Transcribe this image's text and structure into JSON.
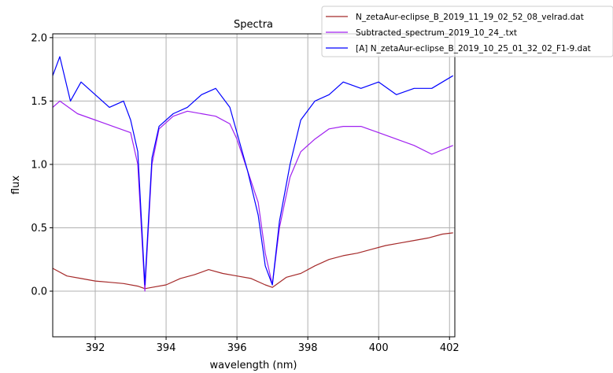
{
  "chart_data": {
    "type": "line",
    "title": "Spectra",
    "xlabel": "wavelength (nm)",
    "ylabel": "flux",
    "xlim": [
      390.8,
      402.15
    ],
    "ylim": [
      -0.36,
      2.03
    ],
    "xticks": [
      392,
      394,
      396,
      398,
      400,
      402
    ],
    "yticks": [
      0.0,
      0.5,
      1.0,
      1.5,
      2.0
    ],
    "xtick_labels": [
      "392",
      "394",
      "396",
      "398",
      "400",
      "402"
    ],
    "ytick_labels": [
      "0.0",
      "0.5",
      "1.0",
      "1.5",
      "2.0"
    ],
    "grid": true,
    "legend_position": "upper-right (outside axes)",
    "series": [
      {
        "name": "N_zetaAur-eclipse_B_2019_11_19_02_52_08_velrad.dat",
        "color": "#a52a2a",
        "x": [
          390.8,
          391.2,
          391.6,
          392.0,
          392.4,
          392.8,
          393.2,
          393.4,
          393.6,
          394.0,
          394.4,
          394.8,
          395.2,
          395.6,
          396.0,
          396.4,
          396.8,
          397.0,
          397.4,
          397.8,
          398.2,
          398.6,
          399.0,
          399.4,
          399.8,
          400.2,
          400.6,
          401.0,
          401.4,
          401.8,
          402.1
        ],
        "y": [
          0.18,
          0.12,
          0.1,
          0.08,
          0.07,
          0.06,
          0.04,
          0.02,
          0.03,
          0.05,
          0.1,
          0.13,
          0.17,
          0.14,
          0.12,
          0.1,
          0.05,
          0.03,
          0.11,
          0.14,
          0.2,
          0.25,
          0.28,
          0.3,
          0.33,
          0.36,
          0.38,
          0.4,
          0.42,
          0.45,
          0.46
        ]
      },
      {
        "name": "Subtracted_spectrum_2019_10_24_.txt",
        "color": "#a020f0",
        "x": [
          390.8,
          391.0,
          391.5,
          392.0,
          392.5,
          393.0,
          393.2,
          393.4,
          393.6,
          393.8,
          394.2,
          394.6,
          395.0,
          395.4,
          395.8,
          396.0,
          396.3,
          396.6,
          396.8,
          397.0,
          397.2,
          397.5,
          397.8,
          398.2,
          398.6,
          399.0,
          399.5,
          400.0,
          400.5,
          401.0,
          401.5,
          402.1
        ],
        "y": [
          1.45,
          1.5,
          1.4,
          1.35,
          1.3,
          1.25,
          1.0,
          0.0,
          1.0,
          1.28,
          1.38,
          1.42,
          1.4,
          1.38,
          1.32,
          1.2,
          0.95,
          0.7,
          0.3,
          0.05,
          0.5,
          0.9,
          1.1,
          1.2,
          1.28,
          1.3,
          1.3,
          1.25,
          1.2,
          1.15,
          1.08,
          1.15
        ]
      },
      {
        "name": "[A] N_zetaAur-eclipse_B_2019_10_25_01_32_02_F1-9.dat",
        "color": "#0000ff",
        "x": [
          390.8,
          391.0,
          391.3,
          391.6,
          392.0,
          392.4,
          392.8,
          393.0,
          393.2,
          393.4,
          393.6,
          393.8,
          394.2,
          394.6,
          395.0,
          395.4,
          395.8,
          396.0,
          396.3,
          396.6,
          396.8,
          397.0,
          397.2,
          397.5,
          397.8,
          398.2,
          398.6,
          399.0,
          399.5,
          400.0,
          400.5,
          401.0,
          401.5,
          402.1
        ],
        "y": [
          1.7,
          1.85,
          1.5,
          1.65,
          1.55,
          1.45,
          1.5,
          1.35,
          1.1,
          0.05,
          1.05,
          1.3,
          1.4,
          1.45,
          1.55,
          1.6,
          1.45,
          1.25,
          0.95,
          0.6,
          0.2,
          0.05,
          0.55,
          1.0,
          1.35,
          1.5,
          1.55,
          1.65,
          1.6,
          1.65,
          1.55,
          1.6,
          1.6,
          1.7
        ]
      }
    ]
  }
}
